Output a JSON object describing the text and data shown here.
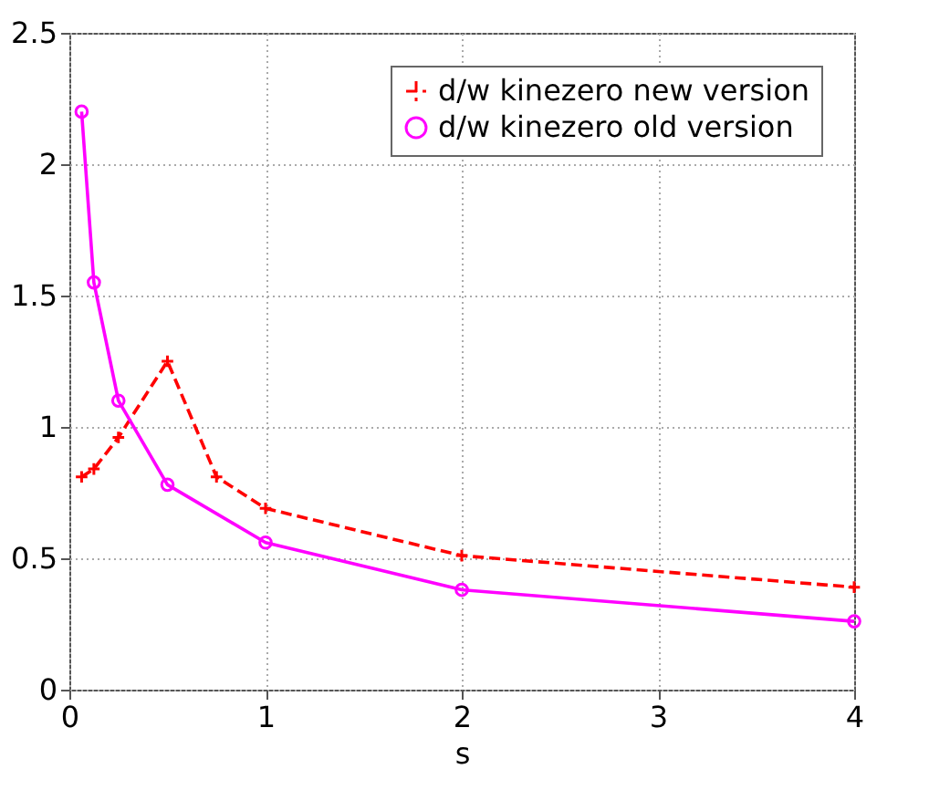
{
  "chart_data": {
    "type": "line",
    "xlabel": "s",
    "xlim": [
      0,
      4
    ],
    "xticks": [
      0,
      1,
      2,
      3,
      4
    ],
    "ylim": [
      0,
      2.5
    ],
    "yticks": [
      0,
      0.5,
      1,
      1.5,
      2,
      2.5
    ],
    "grid": true,
    "legend": "top right",
    "series": [
      {
        "name": "d/w kinezero new version",
        "color": "#ff0000",
        "marker": "cross",
        "line_style": "dashed",
        "x": [
          0.0625,
          0.125,
          0.25,
          0.5,
          0.75,
          1,
          2,
          4
        ],
        "values": [
          0.81,
          0.84,
          0.96,
          1.25,
          0.81,
          0.69,
          0.51,
          0.39
        ]
      },
      {
        "name": "d/w kinezero old version",
        "color": "#ff00ff",
        "marker": "circle",
        "line_style": "solid",
        "x": [
          0.0625,
          0.125,
          0.25,
          0.5,
          1,
          2,
          4
        ],
        "values": [
          2.2,
          1.55,
          1.1,
          0.78,
          0.56,
          0.38,
          0.26
        ]
      }
    ]
  }
}
